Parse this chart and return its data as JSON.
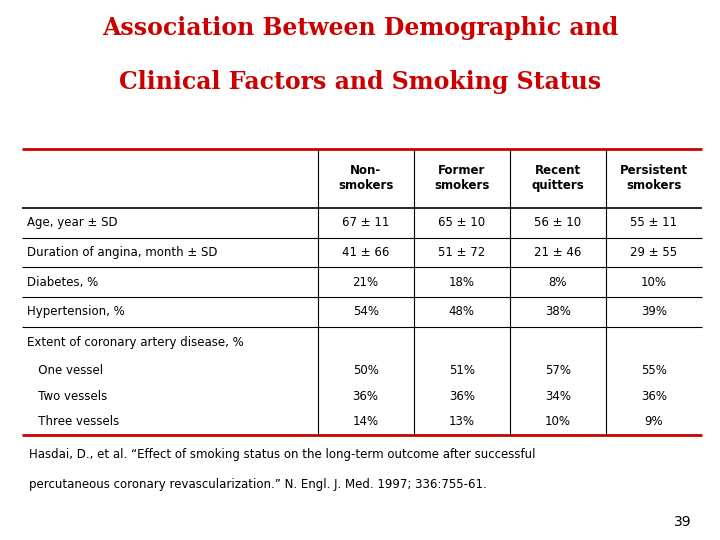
{
  "title_line1": "Association Between Demographic and",
  "title_line2": "Clinical Factors and Smoking Status",
  "title_color": "#CC0000",
  "background_color": "#FFFFFF",
  "col_headers": [
    "Non-\nsmokers",
    "Former\nsmokers",
    "Recent\nquitters",
    "Persistent\nsmokers"
  ],
  "rows": [
    {
      "label": "Age, year ± SD",
      "values": [
        "67 ± 11",
        "65 ± 10",
        "56 ± 10",
        "55 ± 11"
      ],
      "indent": 0
    },
    {
      "label": "Duration of angina, month ± SD",
      "values": [
        "41 ± 66",
        "51 ± 72",
        "21 ± 46",
        "29 ± 55"
      ],
      "indent": 0
    },
    {
      "label": "Diabetes, %",
      "values": [
        "21%",
        "18%",
        "8%",
        "10%"
      ],
      "indent": 0
    },
    {
      "label": "Hypertension, %",
      "values": [
        "54%",
        "48%",
        "38%",
        "39%"
      ],
      "indent": 0
    },
    {
      "label": "Extent of coronary artery disease, %",
      "values": [
        "",
        "",
        "",
        ""
      ],
      "indent": 0
    },
    {
      "label": "   One vessel",
      "values": [
        "50%",
        "51%",
        "57%",
        "55%"
      ],
      "indent": 1
    },
    {
      "label": "   Two vessels",
      "values": [
        "36%",
        "36%",
        "34%",
        "36%"
      ],
      "indent": 1
    },
    {
      "label": "   Three vessels",
      "values": [
        "14%",
        "13%",
        "10%",
        "9%"
      ],
      "indent": 1
    }
  ],
  "footnote_line1": "Hasdai, D., et al. “Effect of smoking status on the long-term outcome after successful",
  "footnote_line2": "percutaneous coronary revascularization.” N. Engl. J. Med. 1997; 336:755-61.",
  "page_number": "39",
  "table_line_color": "#000000",
  "header_line_color": "#CC0000",
  "title_fontsize": 17,
  "table_fontsize": 8.5,
  "footnote_fontsize": 8.5
}
